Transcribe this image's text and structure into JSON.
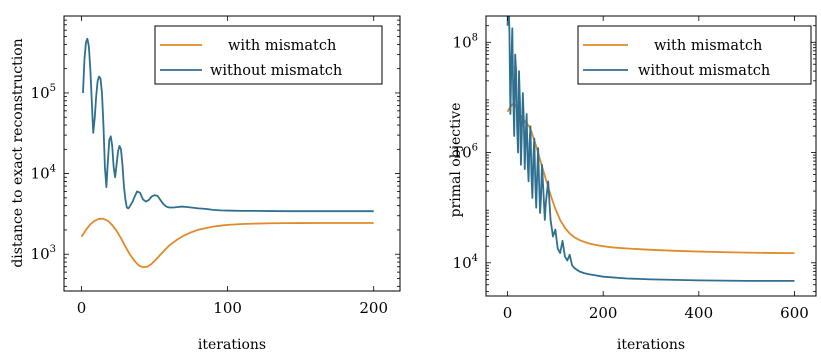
{
  "colors": {
    "with_mismatch": "#e08a2c",
    "without_mismatch": "#2f6f8f"
  },
  "chart_data": [
    {
      "type": "line",
      "xlabel": "iterations",
      "ylabel": "distance to exact reconstruction",
      "yscale": "log",
      "xlim": [
        -12,
        218
      ],
      "ylim": [
        350,
        900000
      ],
      "xticks": [
        0,
        100,
        200
      ],
      "yticks": [
        1000,
        10000,
        100000
      ],
      "ytick_labels": [
        [
          "10",
          "3"
        ],
        [
          "10",
          "4"
        ],
        [
          "10",
          "5"
        ]
      ],
      "legend_position": "top-right",
      "series": [
        {
          "name": "with mismatch",
          "color": "#e08a2c",
          "x": [
            0,
            3,
            6,
            9,
            12,
            15,
            18,
            21,
            24,
            27,
            30,
            33,
            36,
            39,
            42,
            45,
            48,
            51,
            54,
            57,
            60,
            65,
            70,
            75,
            80,
            85,
            90,
            95,
            100,
            110,
            120,
            130,
            140,
            150,
            160,
            170,
            180,
            190,
            200
          ],
          "y": [
            1650,
            2000,
            2350,
            2600,
            2750,
            2750,
            2600,
            2300,
            1950,
            1580,
            1250,
            1000,
            840,
            730,
            690,
            700,
            760,
            860,
            990,
            1130,
            1280,
            1500,
            1700,
            1870,
            2010,
            2110,
            2200,
            2260,
            2310,
            2370,
            2400,
            2420,
            2430,
            2435,
            2440,
            2440,
            2440,
            2440,
            2440
          ]
        },
        {
          "name": "without mismatch",
          "color": "#2f6f8f",
          "x": [
            1,
            2,
            3,
            4,
            5,
            6,
            7,
            8,
            9,
            10,
            11,
            12,
            13,
            14,
            15,
            16,
            17,
            18,
            19,
            20,
            21,
            22,
            23,
            24,
            25,
            26,
            27,
            28,
            29,
            30,
            31,
            32,
            33,
            34,
            35,
            36,
            38,
            40,
            42,
            44,
            46,
            48,
            50,
            52,
            54,
            56,
            58,
            60,
            63,
            66,
            69,
            72,
            75,
            80,
            85,
            90,
            95,
            100,
            110,
            120,
            130,
            140,
            150,
            160,
            170,
            180,
            190,
            200
          ],
          "y": [
            100000,
            260000,
            420000,
            470000,
            380000,
            200000,
            80000,
            32000,
            48000,
            90000,
            140000,
            160000,
            150000,
            100000,
            40000,
            12000,
            6800,
            14000,
            26000,
            29000,
            22000,
            12000,
            9000,
            13000,
            19000,
            22000,
            20000,
            13000,
            7000,
            4800,
            3800,
            3700,
            3900,
            4200,
            4500,
            5000,
            6000,
            5800,
            4800,
            4500,
            4700,
            5200,
            5400,
            5300,
            4700,
            4200,
            3900,
            3800,
            3800,
            3850,
            3900,
            3850,
            3800,
            3700,
            3650,
            3550,
            3500,
            3480,
            3450,
            3450,
            3430,
            3420,
            3420,
            3420,
            3420,
            3420,
            3420,
            3420
          ]
        }
      ]
    },
    {
      "type": "line",
      "xlabel": "iterations",
      "ylabel": "primal objective",
      "yscale": "log",
      "xlim": [
        -45,
        645
      ],
      "ylim": [
        2500,
        300000000
      ],
      "xticks": [
        0,
        200,
        400,
        600
      ],
      "yticks": [
        10000,
        1000000,
        100000000
      ],
      "ytick_labels": [
        [
          "10",
          "4"
        ],
        [
          "10",
          "6"
        ],
        [
          "10",
          "8"
        ]
      ],
      "legend_position": "top-right",
      "series": [
        {
          "name": "with mismatch",
          "color": "#e08a2c",
          "x": [
            0,
            5,
            10,
            15,
            20,
            25,
            30,
            35,
            40,
            45,
            50,
            60,
            70,
            80,
            90,
            100,
            110,
            120,
            130,
            140,
            150,
            160,
            170,
            180,
            200,
            220,
            250,
            300,
            350,
            400,
            450,
            500,
            550,
            600
          ],
          "y": [
            5500000,
            6500000,
            7500000,
            7500000,
            6500000,
            5000000,
            4200000,
            3800000,
            3400000,
            3000000,
            2400000,
            1300000,
            650000,
            330000,
            170000,
            95000,
            60000,
            43000,
            34000,
            29000,
            26000,
            24000,
            22500,
            21500,
            20000,
            19000,
            18200,
            17200,
            16500,
            16000,
            15600,
            15300,
            15100,
            15000
          ]
        },
        {
          "name": "without mismatch",
          "color": "#2f6f8f",
          "x": [
            0,
            2,
            4,
            6,
            8,
            10,
            12,
            14,
            16,
            18,
            20,
            22,
            24,
            26,
            28,
            30,
            32,
            34,
            36,
            38,
            40,
            42,
            44,
            46,
            48,
            50,
            52,
            54,
            56,
            58,
            60,
            62,
            64,
            66,
            68,
            70,
            72,
            75,
            78,
            80,
            85,
            90,
            95,
            100,
            105,
            110,
            115,
            120,
            125,
            130,
            135,
            140,
            150,
            160,
            170,
            180,
            200,
            250,
            300,
            400,
            500,
            600
          ],
          "y": [
            200000000,
            700000000,
            150000000,
            5000000,
            40000000,
            180000000,
            10000000,
            2000000,
            60000000,
            30000000,
            3000000,
            1000000,
            30000000,
            8000000,
            600000,
            2500000,
            12000000,
            4000000,
            500000,
            2000000,
            5000000,
            700000,
            300000,
            1500000,
            3000000,
            400000,
            150000,
            800000,
            1800000,
            300000,
            100000,
            400000,
            1200000,
            300000,
            80000,
            150000,
            600000,
            200000,
            60000,
            120000,
            300000,
            60000,
            30000,
            40000,
            18000,
            15000,
            25000,
            13000,
            11000,
            14000,
            9000,
            8000,
            7000,
            6500,
            6200,
            6000,
            5600,
            5200,
            5000,
            4800,
            4700,
            4700
          ]
        }
      ]
    }
  ]
}
